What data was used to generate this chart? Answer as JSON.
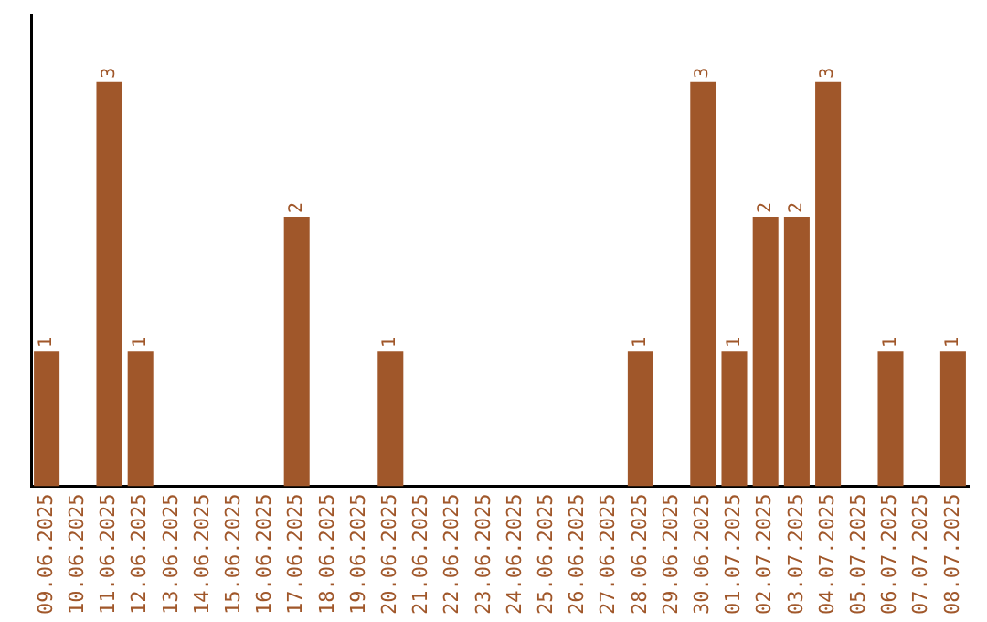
{
  "chart_data": {
    "type": "bar",
    "categories": [
      "09.06.2025",
      "10.06.2025",
      "11.06.2025",
      "12.06.2025",
      "13.06.2025",
      "14.06.2025",
      "15.06.2025",
      "16.06.2025",
      "17.06.2025",
      "18.06.2025",
      "19.06.2025",
      "20.06.2025",
      "21.06.2025",
      "22.06.2025",
      "23.06.2025",
      "24.06.2025",
      "25.06.2025",
      "26.06.2025",
      "27.06.2025",
      "28.06.2025",
      "29.06.2025",
      "30.06.2025",
      "01.07.2025",
      "02.07.2025",
      "03.07.2025",
      "04.07.2025",
      "05.07.2025",
      "06.07.2025",
      "07.07.2025",
      "08.07.2025"
    ],
    "values": [
      1,
      0,
      3,
      1,
      0,
      0,
      0,
      0,
      2,
      0,
      0,
      1,
      0,
      0,
      0,
      0,
      0,
      0,
      0,
      1,
      0,
      3,
      1,
      2,
      2,
      3,
      0,
      1,
      0,
      1
    ],
    "value_labels": [
      "1",
      null,
      "3",
      "1",
      null,
      null,
      null,
      null,
      "2",
      null,
      null,
      "1",
      null,
      null,
      null,
      null,
      null,
      null,
      null,
      "1",
      null,
      "3",
      "1",
      "2",
      "2",
      "3",
      null,
      "1",
      null,
      "1"
    ],
    "color": "#a0572a",
    "tick_labels": "x"
  }
}
